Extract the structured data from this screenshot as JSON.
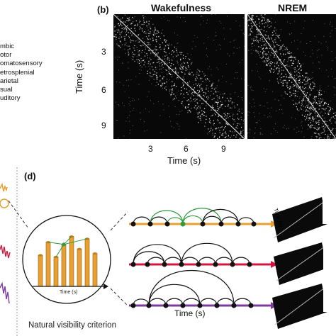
{
  "panel_b": {
    "label": "(b)",
    "titles": [
      "Wakefulness",
      "NREM"
    ],
    "legend": [
      "mbic",
      "otor",
      "omatosensory",
      "etrosplenial",
      "arietal",
      "sual",
      "uditory"
    ],
    "y_ticks": [
      "3",
      "6",
      "9"
    ],
    "x_ticks": [
      "3",
      "6",
      "9"
    ],
    "y_title": "Time (s)",
    "x_title": "Time (s)"
  },
  "panel_d": {
    "label": "(d)",
    "inset_axis_label": "Time (s)",
    "graph_axis_label": "Time (s)",
    "caption": "Natural visibility criterion",
    "left_crop_text": "s",
    "matrix_labels": [
      "Time (s)",
      "Time (s)",
      "Time (s)"
    ],
    "bar_heights": [
      0.55,
      0.78,
      0.52,
      0.74,
      0.88,
      0.66,
      0.84,
      0.58
    ],
    "colors": {
      "orange": "#e8a030",
      "red": "#d3173c",
      "purple": "#7c3a9e",
      "green": "#2f9a3e"
    }
  }
}
